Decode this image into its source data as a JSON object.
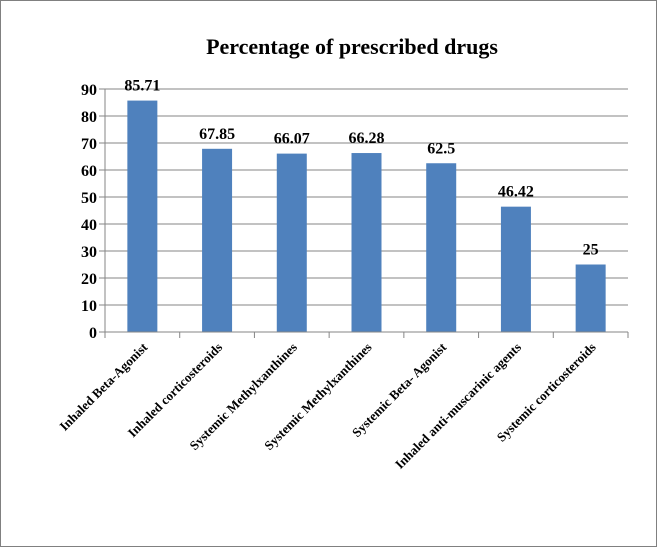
{
  "chart_data": {
    "type": "bar",
    "title": "Percentage of prescribed drugs",
    "categories": [
      "Inhaled Beta-Agonist",
      "Inhaled corticosteroids",
      "Systemic Methylxanthines",
      "Systemic Methylxanthines",
      "Systemic Beta- Agonist",
      "Inhaled anti-muscarinic agents",
      "Systemic corticosteroids"
    ],
    "values": [
      85.71,
      67.85,
      66.07,
      66.28,
      62.5,
      46.42,
      25
    ],
    "value_labels": [
      "85.71",
      "67.85",
      "66.07",
      "66.28",
      "62.5",
      "46.42",
      "25"
    ],
    "ylim": [
      0,
      90
    ],
    "yticks": [
      0,
      10,
      20,
      30,
      40,
      50,
      60,
      70,
      80,
      90
    ],
    "grid": true,
    "bar_color": "#4f81bd",
    "grid_color": "#868686"
  }
}
